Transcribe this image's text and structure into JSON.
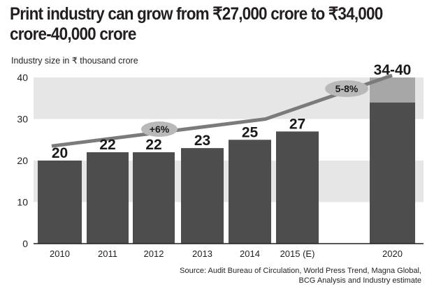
{
  "chart_data": {
    "type": "bar",
    "title": "Print industry can grow from ₹27,000 crore to  ₹34,000 crore-40,000 crore",
    "subtitle": "Industry size in ₹ thousand crore",
    "categories": [
      "2010",
      "2011",
      "2012",
      "2013",
      "2014",
      "2015 (E)",
      "2020"
    ],
    "values": [
      20,
      22,
      22,
      23,
      25,
      27,
      34
    ],
    "range_upper": {
      "category": "2020",
      "low": 34,
      "high": 40
    },
    "data_labels": [
      "20",
      "22",
      "22",
      "23",
      "25",
      "27",
      "34-40"
    ],
    "ylim": [
      0,
      40
    ],
    "yticks": [
      0,
      10,
      20,
      30,
      40
    ],
    "trend_line": {
      "x": [
        "2010",
        "2015 (E)",
        "2020"
      ],
      "y": [
        23.5,
        30,
        40.5
      ]
    },
    "growth_labels": [
      {
        "label": "+6%",
        "period": "2010-2015 (E)"
      },
      {
        "label": "5-8%",
        "period": "2015 (E)-2020"
      }
    ],
    "grid": false,
    "banded_background": true,
    "colors": {
      "bar": "#4d4d4d",
      "bar_range": "#a7a7a7",
      "band": "#e6e6e6",
      "trend": "#7b7b7b",
      "bubble": "#b9b9b9"
    },
    "source": "Source: Audit Bureau of Circulation, World Press Trend, Magna Global,\nBCG Analysis and Industry estimate"
  }
}
